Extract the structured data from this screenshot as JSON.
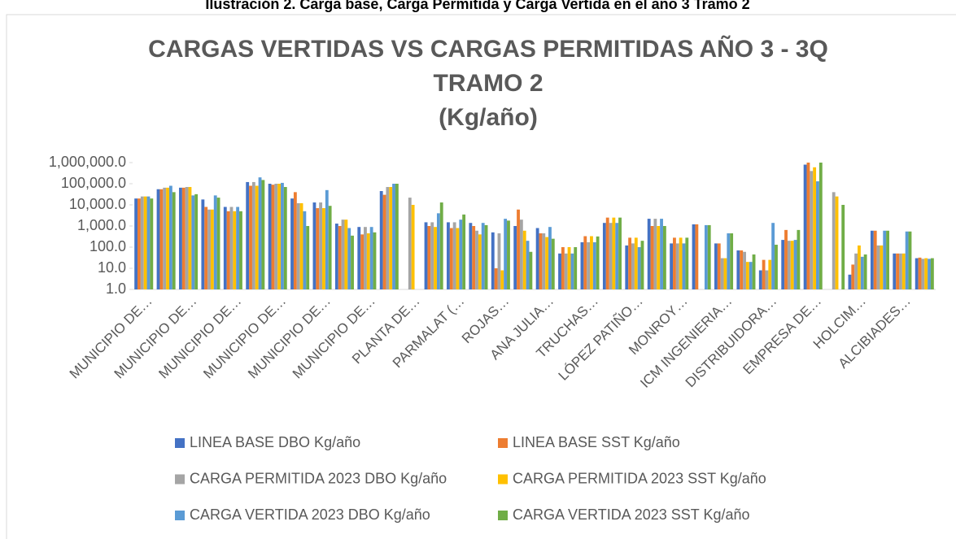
{
  "caption": "Ilustración 2. Carga base, Carga Permitida y Carga Vertida en el año 3 Tramo 2",
  "chart_data": {
    "type": "bar",
    "title_lines": [
      "CARGAS VERTIDAS VS CARGAS PERMITIDAS  AÑO 3 - 3Q",
      "TRAMO 2",
      "(Kg/año)"
    ],
    "log_scale": true,
    "ylim": [
      1,
      1000000
    ],
    "yticks": [
      {
        "value": 1,
        "label": "1.0"
      },
      {
        "value": 10,
        "label": "10.0"
      },
      {
        "value": 100,
        "label": "100.0"
      },
      {
        "value": 1000,
        "label": "1,000.0"
      },
      {
        "value": 10000,
        "label": "10,000.0"
      },
      {
        "value": 100000,
        "label": "100,000.0"
      },
      {
        "value": 1000000,
        "label": "1,000,000.0"
      }
    ],
    "legend": "bottom",
    "categories": [
      "MUNICIPIO DE…",
      null,
      "MUNICIPIO DE…",
      null,
      "MUNICIPIO DE…",
      null,
      "MUNICIPIO DE…",
      null,
      "MUNICIPIO DE…",
      null,
      "MUNICIPIO DE…",
      null,
      "PLANTA DE…",
      null,
      "PARMALAT  (…",
      null,
      "ROJAS…",
      null,
      "ANA JULIA…",
      null,
      "TRUCHAS…",
      null,
      "LÓPEZ PATIÑO…",
      null,
      "MONROY…",
      null,
      "ICM INGENIERIA…",
      null,
      "DISTRIBUIDORA…",
      null,
      "EMPRESA DE…",
      null,
      "HOLCIM…",
      null,
      "ALCIBIADES…",
      null
    ],
    "series": [
      {
        "name": "LINEA BASE DBO Kg/año",
        "color": "#4472c4",
        "values": [
          20000,
          55000,
          65000,
          18000,
          8000,
          120000,
          100000,
          20000,
          13000,
          1300,
          900,
          45000,
          null,
          1500,
          1500,
          1400,
          500,
          1000,
          800,
          50,
          170,
          1400,
          120,
          2200,
          150,
          1200,
          150,
          70,
          8,
          220,
          800000,
          null,
          5,
          600,
          50,
          30
        ]
      },
      {
        "name": "LINEA BASE SST Kg/año",
        "color": "#ed7d31",
        "values": [
          20000,
          55000,
          65000,
          8000,
          5000,
          80000,
          90000,
          40000,
          7000,
          1000,
          400,
          30000,
          null,
          1000,
          800,
          1000,
          10,
          6000,
          450,
          100,
          330,
          2500,
          280,
          1000,
          280,
          1200,
          150,
          70,
          25,
          650,
          1000000,
          null,
          15,
          600,
          50,
          32
        ]
      },
      {
        "name": "CARGA PERMITIDA 2023 DBO Kg/año",
        "color": "#a5a5a5",
        "values": [
          25000,
          65000,
          70000,
          6000,
          8000,
          120000,
          100000,
          12000,
          13000,
          2000,
          900,
          70000,
          22000,
          1500,
          1500,
          600,
          450,
          2000,
          450,
          50,
          170,
          1400,
          150,
          2200,
          150,
          null,
          30,
          60,
          8,
          200,
          400000,
          40000,
          50,
          120,
          50,
          28
        ]
      },
      {
        "name": "CARGA PERMITIDA 2023 SST Kg/año",
        "color": "#ffc000",
        "values": [
          25000,
          65000,
          70000,
          6000,
          5000,
          80000,
          100000,
          12000,
          7000,
          2000,
          450,
          70000,
          10000,
          900,
          800,
          400,
          8,
          600,
          300,
          100,
          330,
          2500,
          280,
          1000,
          280,
          null,
          30,
          20,
          25,
          200,
          600000,
          25000,
          120,
          120,
          50,
          30
        ]
      },
      {
        "name": "CARGA VERTIDA  2023 DBO Kg/año",
        "color": "#5b9bd5",
        "values": [
          25000,
          80000,
          28000,
          28000,
          8000,
          200000,
          110000,
          5000,
          50000,
          800,
          900,
          100000,
          null,
          4000,
          2000,
          1400,
          2200,
          200,
          900,
          50,
          170,
          1400,
          100,
          2200,
          150,
          1100,
          450,
          20,
          1400,
          220,
          130000,
          null,
          35,
          600,
          550,
          28
        ]
      },
      {
        "name": "CARGA VERTIDA  2023 SST Kg/año",
        "color": "#70ad47",
        "values": [
          20000,
          40000,
          32000,
          22000,
          5000,
          150000,
          70000,
          1000,
          9000,
          350,
          500,
          100000,
          null,
          13000,
          3500,
          1100,
          1800,
          60,
          250,
          100,
          320,
          2500,
          200,
          1000,
          280,
          1100,
          450,
          45,
          130,
          650,
          1000000,
          10000,
          45,
          600,
          550,
          30
        ]
      }
    ]
  }
}
